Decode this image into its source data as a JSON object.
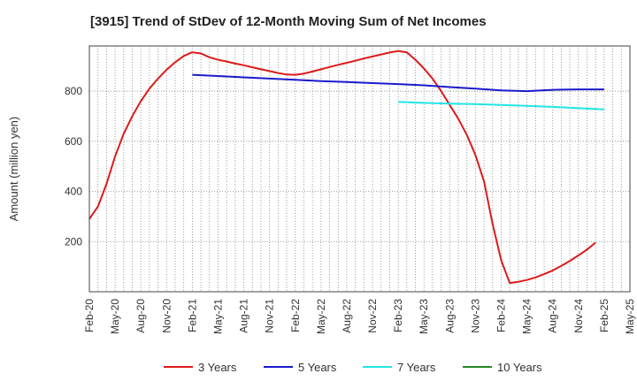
{
  "chart_data": {
    "type": "line",
    "title": "[3915]  Trend of StDev of 12-Month Moving Sum of Net Incomes",
    "ylabel": "Amount (million yen)",
    "xlabel": "",
    "ylim": [
      0,
      980
    ],
    "y_ticks": [
      200,
      400,
      600,
      800
    ],
    "x_tick_labels": [
      "Feb-20",
      "May-20",
      "Aug-20",
      "Nov-20",
      "Feb-21",
      "May-21",
      "Aug-21",
      "Nov-21",
      "Feb-22",
      "May-22",
      "Aug-22",
      "Nov-22",
      "Feb-23",
      "May-23",
      "Aug-23",
      "Nov-23",
      "Feb-24",
      "May-24",
      "Aug-24",
      "Nov-24",
      "Feb-25",
      "May-25"
    ],
    "grid": true,
    "legend_position": "bottom",
    "series": [
      {
        "name": "3 Years",
        "color": "#dd1a1a",
        "x": [
          "2020-02",
          "2020-03",
          "2020-04",
          "2020-05",
          "2020-06",
          "2020-07",
          "2020-08",
          "2020-09",
          "2020-10",
          "2020-11",
          "2020-12",
          "2021-01",
          "2021-02",
          "2021-03",
          "2021-04",
          "2021-05",
          "2021-06",
          "2021-07",
          "2021-08",
          "2021-09",
          "2021-10",
          "2021-11",
          "2021-12",
          "2022-01",
          "2022-02",
          "2022-03",
          "2022-04",
          "2022-05",
          "2022-06",
          "2022-07",
          "2022-08",
          "2022-09",
          "2022-10",
          "2022-11",
          "2022-12",
          "2023-01",
          "2023-02",
          "2023-03",
          "2023-04",
          "2023-05",
          "2023-06",
          "2023-07",
          "2023-08",
          "2023-09",
          "2023-10",
          "2023-11",
          "2023-12",
          "2024-01",
          "2024-02",
          "2024-03",
          "2024-04",
          "2024-05",
          "2024-06",
          "2024-07",
          "2024-08",
          "2024-09",
          "2024-10",
          "2024-11",
          "2024-12",
          "2025-01",
          "2025-02"
        ],
        "values": [
          290,
          340,
          430,
          540,
          630,
          700,
          760,
          810,
          850,
          885,
          915,
          940,
          955,
          950,
          935,
          925,
          918,
          910,
          903,
          895,
          887,
          880,
          872,
          866,
          865,
          870,
          878,
          887,
          896,
          905,
          913,
          921,
          930,
          938,
          946,
          954,
          960,
          955,
          925,
          890,
          850,
          800,
          745,
          690,
          625,
          545,
          440,
          270,
          125,
          35,
          40,
          47,
          57,
          70,
          85,
          103,
          123,
          145,
          168,
          196,
          0
        ],
        "trim_last": true
      },
      {
        "name": "5 Years",
        "color": "#1a1acc",
        "x": [
          "2021-02",
          "2021-05",
          "2021-08",
          "2021-11",
          "2022-02",
          "2022-05",
          "2022-08",
          "2022-11",
          "2023-02",
          "2023-05",
          "2023-08",
          "2023-11",
          "2024-02",
          "2024-05",
          "2024-08",
          "2024-11",
          "2025-02"
        ],
        "values": [
          865,
          860,
          855,
          850,
          845,
          840,
          836,
          832,
          828,
          823,
          816,
          810,
          803,
          800,
          805,
          807,
          807
        ]
      },
      {
        "name": "7 Years",
        "color": "#22e5e5",
        "x": [
          "2023-02",
          "2023-05",
          "2023-08",
          "2023-11",
          "2024-02",
          "2024-05",
          "2024-08",
          "2024-11",
          "2025-02"
        ],
        "values": [
          757,
          753,
          750,
          748,
          745,
          741,
          737,
          732,
          727
        ]
      },
      {
        "name": "10 Years",
        "color": "#228822",
        "x": [],
        "values": []
      }
    ]
  }
}
